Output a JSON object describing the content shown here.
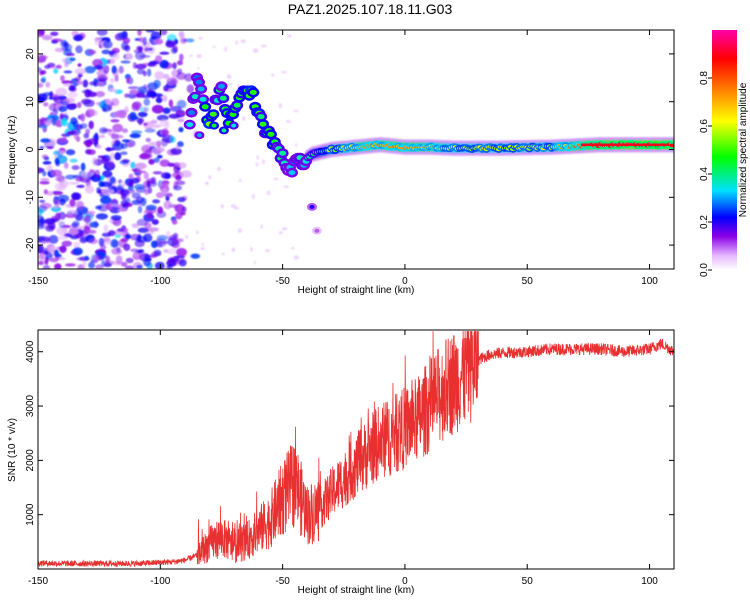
{
  "title": "PAZ1.2025.107.18.11.G03",
  "chart_data": [
    {
      "type": "heatmap",
      "name": "spectrogram",
      "xlabel": "Height of straight line (km)",
      "ylabel": "Frequency (Hz)",
      "xlim": [
        -150,
        110
      ],
      "ylim": [
        -25,
        25
      ],
      "xticks": [
        -150,
        -100,
        -50,
        0,
        50,
        100
      ],
      "yticks": [
        -20,
        -10,
        0,
        10,
        20
      ],
      "colorbar": {
        "label": "Normalized spectral amplitude",
        "range": [
          0.0,
          1.0
        ],
        "ticks": [
          "0.0",
          "0.2",
          "0.4",
          "0.6",
          "0.8"
        ],
        "colors": [
          "#ffffff",
          "#e6b8ff",
          "#8a00e6",
          "#0000ff",
          "#00e0ff",
          "#00ff00",
          "#ffff00",
          "#ff8000",
          "#ff0000",
          "#ff00aa"
        ]
      },
      "noise_region": {
        "x": [
          -150,
          -90
        ],
        "freq": [
          -25,
          25
        ],
        "amplitude": [
          0.05,
          0.25
        ]
      },
      "signal_track": [
        {
          "x": -88,
          "f": 4,
          "a": 0.35
        },
        {
          "x": -85,
          "f": 15,
          "a": 0.3
        },
        {
          "x": -80,
          "f": 5,
          "a": 0.5
        },
        {
          "x": -75,
          "f": 14,
          "a": 0.35
        },
        {
          "x": -72,
          "f": 5,
          "a": 0.45
        },
        {
          "x": -66,
          "f": 13,
          "a": 0.45
        },
        {
          "x": -62,
          "f": 11,
          "a": 0.5
        },
        {
          "x": -58,
          "f": 5,
          "a": 0.45
        },
        {
          "x": -54,
          "f": 2,
          "a": 0.45
        },
        {
          "x": -50,
          "f": -2,
          "a": 0.35
        },
        {
          "x": -47,
          "f": -4,
          "a": 0.3
        },
        {
          "x": -38,
          "f": -1,
          "a": 0.4
        },
        {
          "x": -30,
          "f": 0,
          "a": 0.55
        },
        {
          "x": -20,
          "f": 0.5,
          "a": 0.7
        },
        {
          "x": -10,
          "f": 1,
          "a": 0.7
        },
        {
          "x": 0,
          "f": 0.5,
          "a": 0.75
        },
        {
          "x": 10,
          "f": 0.5,
          "a": 0.7
        },
        {
          "x": 20,
          "f": 0.3,
          "a": 0.6
        },
        {
          "x": 40,
          "f": 0.3,
          "a": 0.6
        },
        {
          "x": 60,
          "f": 0.5,
          "a": 0.6
        },
        {
          "x": 80,
          "f": 1,
          "a": 0.9
        },
        {
          "x": 100,
          "f": 1,
          "a": 0.95
        },
        {
          "x": 110,
          "f": 1,
          "a": 0.9
        }
      ]
    },
    {
      "type": "line",
      "name": "snr",
      "xlabel": "Height of straight line (km)",
      "ylabel": "SNR (10 * v/v)",
      "xlim": [
        -150,
        110
      ],
      "ylim": [
        0,
        4400
      ],
      "xticks": [
        -150,
        -100,
        -50,
        0,
        50,
        100
      ],
      "yticks": [
        1000,
        2000,
        3000,
        4000
      ],
      "color": "#e83030",
      "series": [
        {
          "name": "SNR",
          "x": [
            -150,
            -140,
            -130,
            -120,
            -110,
            -100,
            -95,
            -90,
            -85,
            -80,
            -75,
            -70,
            -65,
            -60,
            -55,
            -50,
            -45,
            -40,
            -35,
            -30,
            -25,
            -20,
            -15,
            -10,
            -5,
            0,
            5,
            10,
            15,
            20,
            25,
            30,
            35,
            40,
            50,
            60,
            70,
            80,
            90,
            100,
            105,
            110
          ],
          "y": [
            110,
            100,
            100,
            100,
            100,
            120,
            130,
            160,
            250,
            450,
            600,
            400,
            500,
            700,
            900,
            1300,
            1600,
            1000,
            1100,
            1400,
            1650,
            1900,
            2150,
            2350,
            2450,
            2600,
            2750,
            3000,
            3250,
            3450,
            3650,
            3850,
            3950,
            3980,
            4000,
            4050,
            4050,
            4050,
            4000,
            4050,
            4150,
            4000
          ]
        }
      ]
    }
  ]
}
